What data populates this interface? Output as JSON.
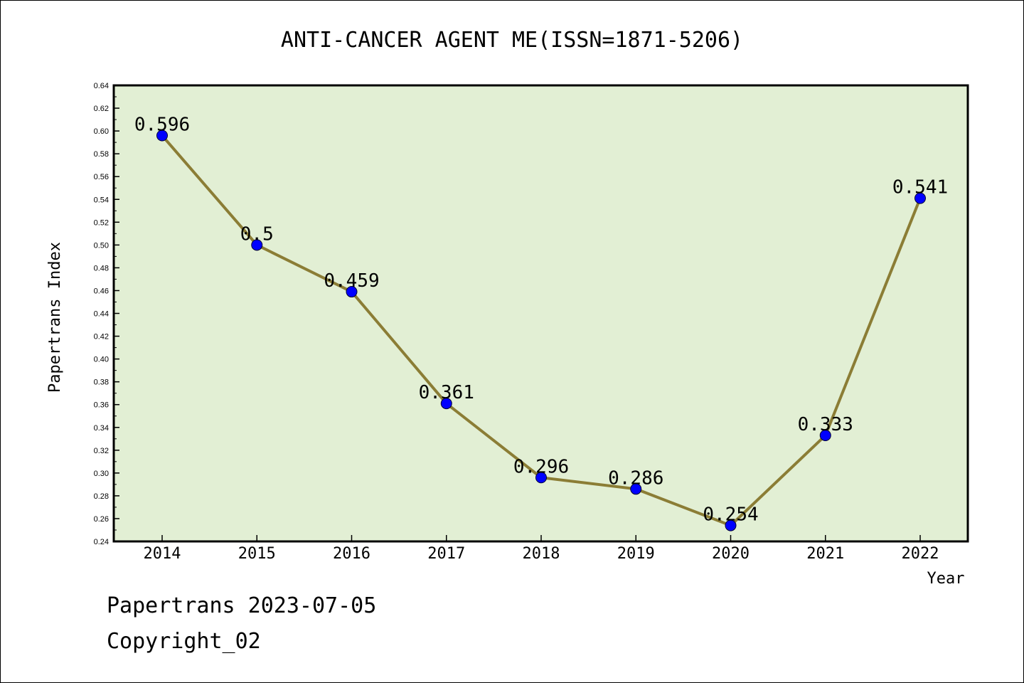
{
  "chart_data": {
    "type": "line",
    "title": "ANTI-CANCER AGENT ME(ISSN=1871-5206)",
    "xlabel": "Year",
    "ylabel": "Papertrans Index",
    "categories": [
      "2014",
      "2015",
      "2016",
      "2017",
      "2018",
      "2019",
      "2020",
      "2021",
      "2022"
    ],
    "values": [
      0.596,
      0.5,
      0.459,
      0.361,
      0.296,
      0.286,
      0.254,
      0.333,
      0.541
    ],
    "data_labels": [
      "0.596",
      "0.5",
      "0.459",
      "0.361",
      "0.296",
      "0.286",
      "0.254",
      "0.333",
      "0.541"
    ],
    "ylim": [
      0.24,
      0.64
    ],
    "yticks": [
      "0.24",
      "0.26",
      "0.28",
      "0.30",
      "0.32",
      "0.34",
      "0.36",
      "0.38",
      "0.40",
      "0.42",
      "0.44",
      "0.46",
      "0.48",
      "0.50",
      "0.52",
      "0.54",
      "0.56",
      "0.58",
      "0.60",
      "0.62",
      "0.64"
    ],
    "grid": false,
    "colors": {
      "background": "#e2efd4",
      "line": "#8b7d35",
      "marker": "#0000ff"
    }
  },
  "footer": {
    "line1": "Papertrans 2023-07-05",
    "line2": "Copyright_02"
  }
}
